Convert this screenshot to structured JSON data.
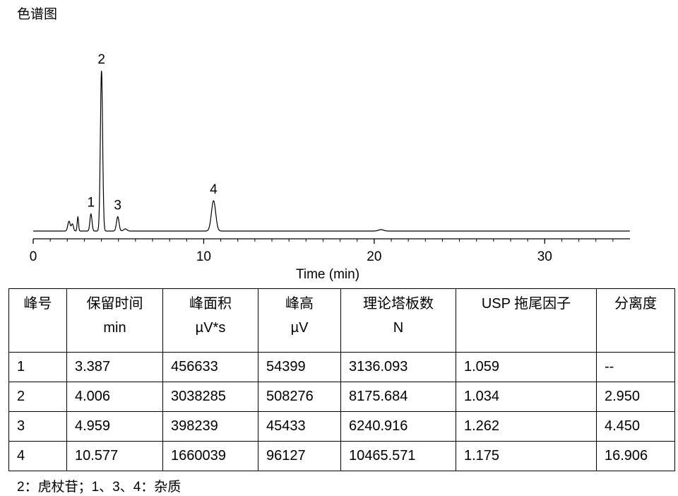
{
  "title": "色谱图",
  "chromatogram": {
    "xlabel": "Time (min)",
    "xlim": [
      0,
      35
    ],
    "xticks": [
      0,
      10,
      20,
      30
    ],
    "peak_labels": [
      "1",
      "2",
      "3",
      "4"
    ]
  },
  "table": {
    "header": [
      [
        "峰号"
      ],
      [
        "保留时间",
        "min"
      ],
      [
        "峰面积",
        "µV*s"
      ],
      [
        "峰高",
        "µV"
      ],
      [
        "理论塔板数",
        "N"
      ],
      [
        "USP 拖尾因子"
      ],
      [
        "分离度"
      ]
    ],
    "rows": [
      [
        "1",
        "3.387",
        "456633",
        "54399",
        "3136.093",
        "1.059",
        "--"
      ],
      [
        "2",
        "4.006",
        "3038285",
        "508276",
        "8175.684",
        "1.034",
        "2.950"
      ],
      [
        "3",
        "4.959",
        "398239",
        "45433",
        "6240.916",
        "1.262",
        "4.450"
      ],
      [
        "4",
        "10.577",
        "1660039",
        "96127",
        "10465.571",
        "1.175",
        "16.906"
      ]
    ]
  },
  "caption": "2：虎杖苷；1、3、4：杂质"
}
